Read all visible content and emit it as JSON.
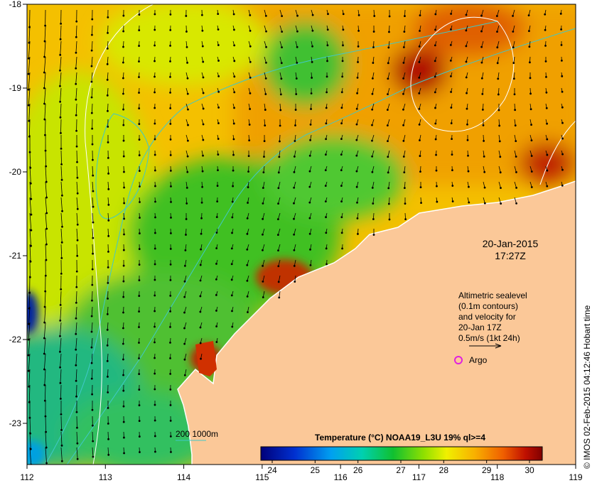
{
  "map": {
    "lon_ticks": [
      "112",
      "113",
      "114",
      "115",
      "116",
      "117",
      "118",
      "119"
    ],
    "lat_ticks": [
      "-18",
      "-19",
      "-20",
      "-21",
      "-22",
      "-23"
    ]
  },
  "date": {
    "line1": "20-Jan-2015",
    "line2": "17:27Z"
  },
  "altimetry": {
    "line1": "Altimetric sealevel",
    "line2": "(0.1m contours)",
    "line3": "and velocity for",
    "line4": "20-Jan 17Z",
    "line5": "0.5m/s (1kt 24h)"
  },
  "argo_label": "Argo",
  "isobath_label": "200  1000m",
  "colorbar": {
    "title": "Temperature (°C) NOAA19_L3U 19% ql>=4",
    "ticks": [
      "24",
      "25",
      "26",
      "27",
      "28",
      "29",
      "30"
    ]
  },
  "credit": "© IMOS 02-Feb-2015 04:12:46 Hobart time",
  "colors": {
    "land": "#fbc898",
    "argo": "#e020e0",
    "isobath": "#40c8c8"
  }
}
